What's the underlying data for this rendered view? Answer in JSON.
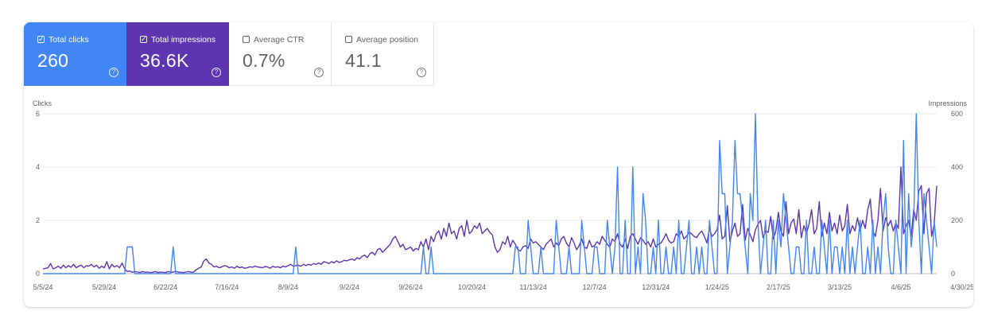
{
  "metrics": {
    "total_clicks": {
      "label": "Total clicks",
      "value": "260",
      "checked": true,
      "color": "#4285f4"
    },
    "total_impressions": {
      "label": "Total impressions",
      "value": "36.6K",
      "checked": true,
      "color": "#5e35b1"
    },
    "average_ctr": {
      "label": "Average CTR",
      "value": "0.7%",
      "checked": false
    },
    "average_position": {
      "label": "Average position",
      "value": "41.1",
      "checked": false
    },
    "help_glyph": "?"
  },
  "chart_data": {
    "type": "line",
    "x_start": "2024-05-05",
    "x_ticks": [
      "5/5/24",
      "5/29/24",
      "6/22/24",
      "7/16/24",
      "8/9/24",
      "9/2/24",
      "9/26/24",
      "10/20/24",
      "11/13/24",
      "12/7/24",
      "12/31/24",
      "1/24/25",
      "2/17/25",
      "3/13/25",
      "4/6/25",
      "4/30/25"
    ],
    "y_left": {
      "label": "Clicks",
      "ticks": [
        "0",
        "2",
        "4",
        "6"
      ],
      "range": [
        0,
        6
      ]
    },
    "y_right": {
      "label": "Impressions",
      "ticks": [
        "0",
        "200",
        "400",
        "600"
      ],
      "range": [
        0,
        600
      ]
    },
    "grid": true,
    "series": [
      {
        "name": "Total clicks",
        "axis": "left",
        "color": "#4285f4",
        "values": [
          0,
          0,
          0,
          0,
          0,
          0,
          0,
          0,
          0,
          0,
          0,
          0,
          0,
          0,
          0,
          0,
          0,
          0,
          0,
          0,
          0,
          0,
          0,
          0,
          0,
          0,
          0,
          0,
          0,
          0,
          0,
          0,
          0,
          1,
          1,
          1,
          0,
          0,
          0,
          0,
          0,
          0,
          0,
          0,
          0,
          0,
          0,
          0,
          0,
          0,
          0,
          1,
          0,
          0,
          0,
          0,
          0,
          0,
          0,
          0,
          0,
          0,
          0,
          0,
          0,
          0,
          0,
          0,
          0,
          0,
          0,
          0,
          0,
          0,
          0,
          0,
          0,
          0,
          0,
          0,
          0,
          0,
          0,
          0,
          0,
          0,
          0,
          0,
          0,
          0,
          0,
          0,
          0,
          0,
          0,
          0,
          0,
          0,
          0,
          1,
          0,
          0,
          0,
          0,
          0,
          0,
          0,
          0,
          0,
          0,
          0,
          0,
          0,
          0,
          0,
          0,
          0,
          0,
          0,
          0,
          0,
          0,
          0,
          0,
          0,
          0,
          0,
          0,
          0,
          0,
          0,
          0,
          0,
          0,
          0,
          0,
          0,
          0,
          0,
          0,
          0,
          0,
          0,
          0,
          0,
          0,
          0,
          0,
          0,
          1,
          0,
          0,
          1,
          0,
          0,
          0,
          0,
          0,
          0,
          0,
          0,
          0,
          0,
          0,
          0,
          0,
          0,
          0,
          0,
          0,
          0,
          0,
          0,
          0,
          0,
          0,
          0,
          0,
          0,
          0,
          0,
          0,
          0,
          0,
          0,
          1,
          1,
          0,
          0,
          0,
          2,
          1,
          0,
          0,
          0,
          1,
          0,
          0,
          0,
          0,
          0,
          2,
          1,
          0,
          0,
          0,
          1,
          0,
          0,
          0,
          0,
          2,
          1,
          0,
          0,
          0,
          1,
          1,
          0,
          0,
          0,
          2,
          1,
          0,
          1,
          4,
          0,
          0,
          2,
          0,
          0,
          4,
          0,
          1,
          0,
          3,
          2,
          0,
          0,
          1,
          0,
          2,
          0,
          0,
          1,
          0,
          0,
          1,
          0,
          2,
          0,
          0,
          1,
          2,
          0,
          0,
          1,
          0,
          1,
          0,
          0,
          2,
          1,
          0,
          0,
          5,
          3,
          3,
          0,
          1,
          2,
          5,
          3,
          3,
          2,
          1,
          0,
          3,
          2,
          6,
          2,
          0,
          1,
          2,
          0,
          0,
          2,
          0,
          2,
          1,
          3,
          2,
          1,
          0,
          0,
          1,
          1,
          0,
          0,
          2,
          0,
          0,
          1,
          0,
          0,
          2,
          1,
          0,
          2,
          0,
          1,
          1,
          0,
          1,
          0,
          2,
          0,
          1,
          0,
          1,
          2,
          0,
          0,
          1,
          0,
          2,
          0,
          1,
          0,
          2,
          3,
          1,
          0,
          0,
          2,
          1,
          0,
          5,
          0,
          3,
          1,
          2,
          6,
          2,
          0,
          3,
          2,
          1,
          0,
          2,
          1
        ]
      },
      {
        "name": "Total impressions",
        "axis": "right",
        "color": "#5e35b1",
        "values": [
          18,
          20,
          22,
          38,
          18,
          22,
          28,
          20,
          32,
          22,
          30,
          24,
          35,
          22,
          28,
          32,
          22,
          30,
          28,
          35,
          25,
          32,
          20,
          28,
          22,
          45,
          18,
          35,
          25,
          30,
          22,
          40,
          18,
          8,
          10,
          5,
          8,
          6,
          4,
          8,
          5,
          6,
          4,
          5,
          8,
          4,
          6,
          5,
          4,
          8,
          5,
          6,
          8,
          6,
          5,
          4,
          6,
          8,
          5,
          6,
          15,
          20,
          25,
          48,
          55,
          40,
          35,
          25,
          28,
          22,
          25,
          30,
          28,
          22,
          25,
          20,
          28,
          22,
          25,
          20,
          22,
          26,
          24,
          28,
          25,
          24,
          22,
          27,
          25,
          20,
          28,
          24,
          26,
          22,
          28,
          25,
          30,
          35,
          28,
          30,
          32,
          28,
          35,
          30,
          35,
          32,
          38,
          35,
          40,
          35,
          45,
          42,
          38,
          45,
          40,
          48,
          42,
          45,
          50,
          48,
          52,
          55,
          50,
          60,
          55,
          65,
          70,
          60,
          75,
          80,
          70,
          90,
          95,
          80,
          90,
          100,
          110,
          130,
          140,
          120,
          100,
          110,
          90,
          95,
          100,
          85,
          95,
          90,
          120,
          100,
          130,
          90,
          140,
          120,
          150,
          160,
          130,
          170,
          140,
          190,
          150,
          160,
          130,
          170,
          180,
          140,
          200,
          150,
          160,
          180,
          170,
          190,
          150,
          160,
          170,
          155,
          145,
          100,
          80,
          90,
          120,
          110,
          140,
          100,
          125,
          110,
          90,
          85,
          100,
          105,
          95,
          130,
          115,
          120,
          110,
          100,
          90,
          110,
          120,
          130,
          100,
          115,
          105,
          130,
          140,
          115,
          100,
          135,
          115,
          90,
          105,
          130,
          100,
          95,
          125,
          100,
          105,
          120,
          110,
          140,
          125,
          110,
          100,
          130,
          120,
          150,
          110,
          100,
          130,
          95,
          140,
          150,
          130,
          110,
          135,
          125,
          110,
          120,
          100,
          130,
          100,
          110,
          115,
          130,
          150,
          125,
          115,
          120,
          150,
          140,
          160,
          130,
          140,
          155,
          150,
          140,
          135,
          150,
          160,
          140,
          115,
          170,
          140,
          150,
          165,
          220,
          130,
          140,
          255,
          120,
          160,
          190,
          140,
          150,
          260,
          125,
          170,
          145,
          120,
          165,
          185,
          200,
          135,
          160,
          155,
          215,
          130,
          160,
          230,
          160,
          140,
          270,
          150,
          190,
          205,
          150,
          240,
          135,
          180,
          150,
          185,
          240,
          150,
          170,
          270,
          140,
          190,
          150,
          230,
          160,
          190,
          150,
          220,
          160,
          180,
          260,
          150,
          180,
          160,
          210,
          160,
          200,
          170,
          240,
          280,
          160,
          140,
          200,
          320,
          160,
          210,
          180,
          200,
          160,
          190,
          170,
          400,
          150,
          180,
          200,
          140,
          240,
          200,
          310,
          330,
          150,
          300,
          320,
          140,
          185,
          330
        ]
      }
    ]
  }
}
